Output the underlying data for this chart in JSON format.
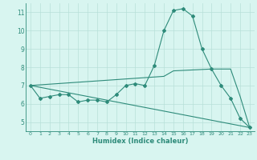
{
  "xlabel": "Humidex (Indice chaleur)",
  "bg_color": "#d8f5f0",
  "line_color": "#2e8b7a",
  "grid_color": "#b8e0d8",
  "xlim": [
    -0.5,
    23.5
  ],
  "ylim": [
    4.5,
    11.5
  ],
  "xticks": [
    0,
    1,
    2,
    3,
    4,
    5,
    6,
    7,
    8,
    9,
    10,
    11,
    12,
    13,
    14,
    15,
    16,
    17,
    18,
    19,
    20,
    21,
    22,
    23
  ],
  "yticks": [
    5,
    6,
    7,
    8,
    9,
    10,
    11
  ],
  "series1_x": [
    0,
    1,
    2,
    3,
    4,
    5,
    6,
    7,
    8,
    9,
    10,
    11,
    12,
    13,
    14,
    15,
    16,
    17,
    18,
    19,
    20,
    21,
    22,
    23
  ],
  "series1_y": [
    7.0,
    6.3,
    6.4,
    6.5,
    6.5,
    6.1,
    6.2,
    6.2,
    6.1,
    6.5,
    7.0,
    7.1,
    7.0,
    8.1,
    10.0,
    11.1,
    11.2,
    10.8,
    9.0,
    7.9,
    7.0,
    6.3,
    5.2,
    4.7
  ],
  "series2_x": [
    0,
    14,
    15,
    19,
    21,
    22,
    23
  ],
  "series2_y": [
    7.0,
    7.5,
    7.8,
    7.9,
    7.9,
    6.4,
    4.7
  ],
  "series3_x": [
    0,
    23
  ],
  "series3_y": [
    7.0,
    4.7
  ]
}
